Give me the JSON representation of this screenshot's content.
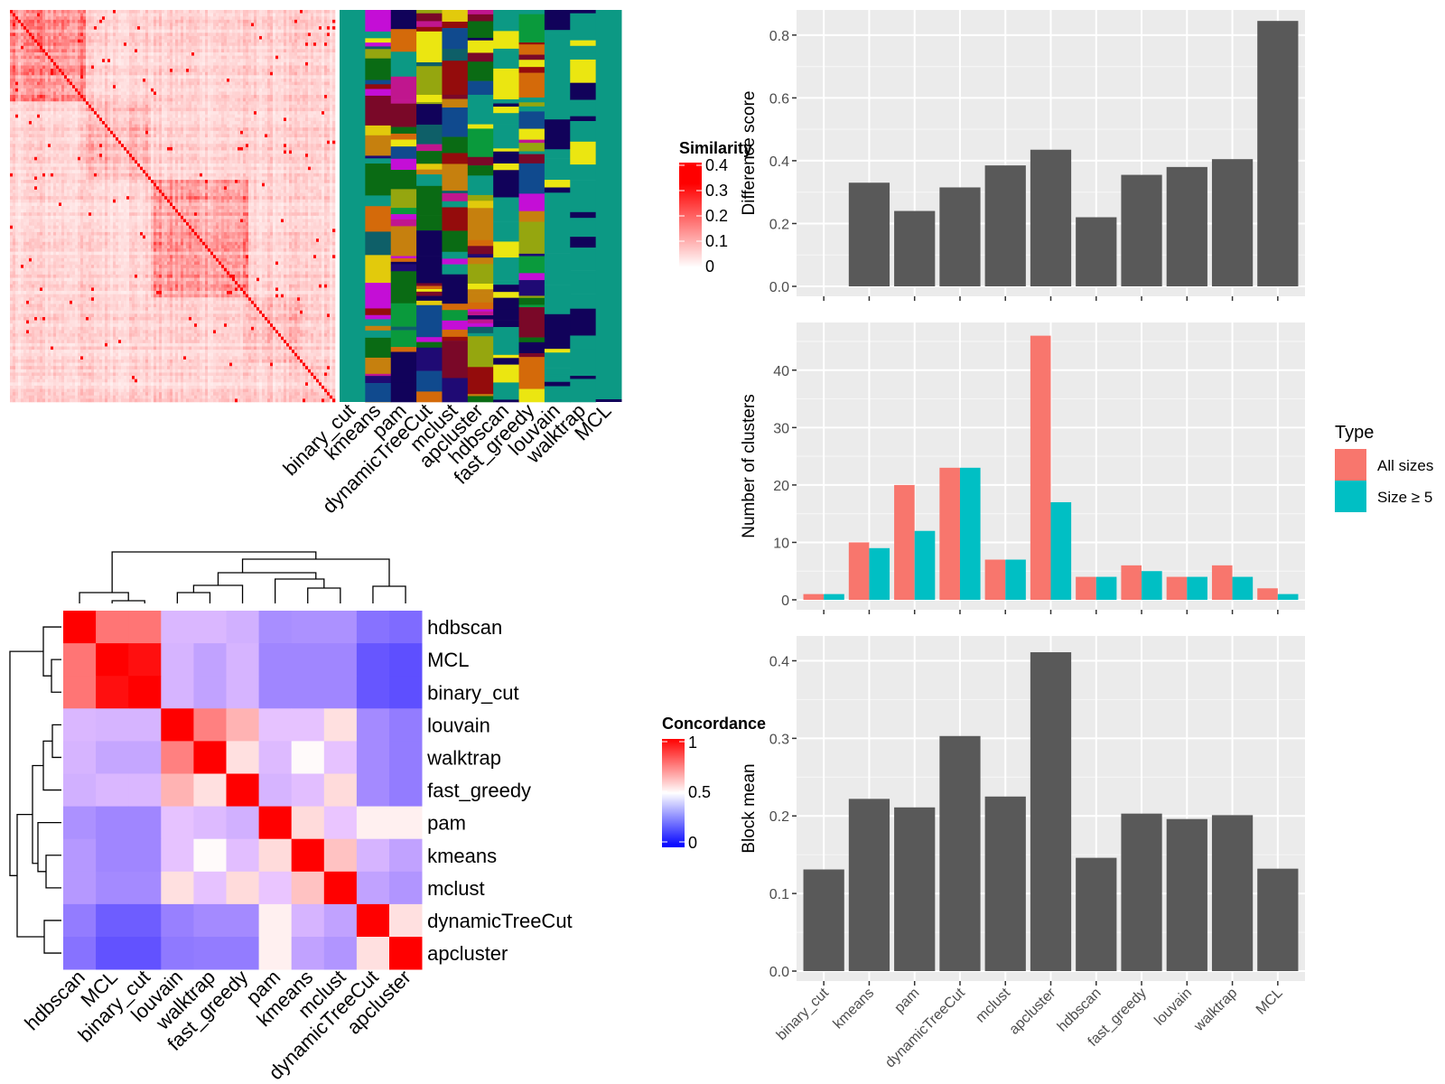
{
  "methods": [
    "binary_cut",
    "kmeans",
    "pam",
    "dynamicTreeCut",
    "mclust",
    "apcluster",
    "hdbscan",
    "fast_greedy",
    "louvain",
    "walktrap",
    "MCL"
  ],
  "similarity_heatmap": {
    "legend_title": "Similarity",
    "legend_ticks": [
      "0.4",
      "0.3",
      "0.2",
      "0.1",
      "0"
    ],
    "color_low": "#ffffff",
    "color_high": "#ff0000"
  },
  "cluster_panel": {
    "column_labels": [
      "binary_cut",
      "kmeans",
      "pam",
      "dynamicTreeCut",
      "mclust",
      "apcluster",
      "hdbscan",
      "fast_greedy",
      "louvain",
      "walktrap",
      "MCL"
    ],
    "palette": [
      "#0c9984",
      "#e2ca0c",
      "#c6800e",
      "#1f0a74",
      "#95a60f",
      "#11025a",
      "#940c0c",
      "#c0168e",
      "#0a9a3c",
      "#0a6b14",
      "#104a8e",
      "#ebe611",
      "#d46a0a",
      "#c40ed6",
      "#0e5f68",
      "#7a0828"
    ]
  },
  "concordance_heatmap": {
    "legend_title": "Concordance",
    "legend_ticks": [
      "1",
      "0.5",
      "0"
    ],
    "color_low": "#0000ff",
    "color_mid": "#ffffff",
    "color_high": "#ff0000",
    "order": [
      "hdbscan",
      "MCL",
      "binary_cut",
      "louvain",
      "walktrap",
      "fast_greedy",
      "pam",
      "kmeans",
      "mclust",
      "dynamicTreeCut",
      "apcluster"
    ],
    "matrix": [
      [
        1.0,
        0.77,
        0.77,
        0.44,
        0.44,
        0.42,
        0.32,
        0.33,
        0.33,
        0.24,
        0.22
      ],
      [
        0.77,
        1.0,
        0.97,
        0.43,
        0.38,
        0.43,
        0.3,
        0.3,
        0.3,
        0.16,
        0.14
      ],
      [
        0.77,
        0.97,
        1.0,
        0.43,
        0.38,
        0.43,
        0.3,
        0.3,
        0.3,
        0.16,
        0.14
      ],
      [
        0.44,
        0.43,
        0.43,
        1.0,
        0.75,
        0.65,
        0.47,
        0.47,
        0.56,
        0.31,
        0.27
      ],
      [
        0.43,
        0.39,
        0.39,
        0.75,
        1.0,
        0.56,
        0.45,
        0.51,
        0.47,
        0.31,
        0.27
      ],
      [
        0.42,
        0.44,
        0.44,
        0.65,
        0.56,
        1.0,
        0.43,
        0.46,
        0.57,
        0.31,
        0.27
      ],
      [
        0.33,
        0.3,
        0.3,
        0.47,
        0.45,
        0.42,
        1.0,
        0.57,
        0.48,
        0.53,
        0.53
      ],
      [
        0.35,
        0.3,
        0.3,
        0.47,
        0.51,
        0.46,
        0.57,
        1.0,
        0.62,
        0.43,
        0.38
      ],
      [
        0.35,
        0.31,
        0.31,
        0.56,
        0.47,
        0.57,
        0.48,
        0.62,
        1.0,
        0.38,
        0.34
      ],
      [
        0.27,
        0.18,
        0.18,
        0.28,
        0.31,
        0.31,
        0.53,
        0.43,
        0.38,
        1.0,
        0.56
      ],
      [
        0.24,
        0.15,
        0.15,
        0.26,
        0.27,
        0.27,
        0.53,
        0.38,
        0.34,
        0.56,
        1.0
      ]
    ]
  },
  "chart_data": [
    {
      "type": "bar",
      "title": "",
      "categories": [
        "binary_cut",
        "kmeans",
        "pam",
        "dynamicTreeCut",
        "mclust",
        "apcluster",
        "hdbscan",
        "fast_greedy",
        "louvain",
        "walktrap",
        "MCL"
      ],
      "values": [
        0.0,
        0.33,
        0.24,
        0.315,
        0.385,
        0.435,
        0.22,
        0.355,
        0.38,
        0.405,
        0.845
      ],
      "xlabel": "",
      "ylabel": "Difference score",
      "ylim": [
        0,
        0.88
      ],
      "yticks": [
        "0.0",
        "0.2",
        "0.4",
        "0.6",
        "0.8"
      ],
      "ytick_values": [
        0,
        0.2,
        0.4,
        0.6,
        0.8
      ],
      "bar_color": "#595959",
      "grid": true,
      "show_x_labels": false
    },
    {
      "type": "bar",
      "title": "",
      "categories": [
        "binary_cut",
        "kmeans",
        "pam",
        "dynamicTreeCut",
        "mclust",
        "apcluster",
        "hdbscan",
        "fast_greedy",
        "louvain",
        "walktrap",
        "MCL"
      ],
      "series": [
        {
          "name": "All sizes",
          "values": [
            1,
            10,
            20,
            23,
            7,
            46,
            4,
            6,
            4,
            6,
            2
          ],
          "color": "#f8766d"
        },
        {
          "name": "Size ≥ 5",
          "values": [
            1,
            9,
            12,
            23,
            7,
            17,
            4,
            5,
            4,
            4,
            1
          ],
          "color": "#00bfc4"
        }
      ],
      "xlabel": "",
      "ylabel": "Number of clusters",
      "ylim": [
        0,
        48.3
      ],
      "yticks": [
        "0",
        "10",
        "20",
        "30",
        "40"
      ],
      "ytick_values": [
        0,
        10,
        20,
        30,
        40
      ],
      "legend_title": "Type",
      "legend_position": "right",
      "grid": true,
      "show_x_labels": false
    },
    {
      "type": "bar",
      "title": "",
      "categories": [
        "binary_cut",
        "kmeans",
        "pam",
        "dynamicTreeCut",
        "mclust",
        "apcluster",
        "hdbscan",
        "fast_greedy",
        "louvain",
        "walktrap",
        "MCL"
      ],
      "values": [
        0.131,
        0.222,
        0.211,
        0.303,
        0.225,
        0.411,
        0.146,
        0.203,
        0.196,
        0.201,
        0.132
      ],
      "xlabel": "",
      "ylabel": "Block mean",
      "ylim": [
        0,
        0.432
      ],
      "yticks": [
        "0.0",
        "0.1",
        "0.2",
        "0.3",
        "0.4"
      ],
      "ytick_values": [
        0,
        0.1,
        0.2,
        0.3,
        0.4
      ],
      "bar_color": "#595959",
      "grid": true,
      "show_x_labels": true
    }
  ]
}
